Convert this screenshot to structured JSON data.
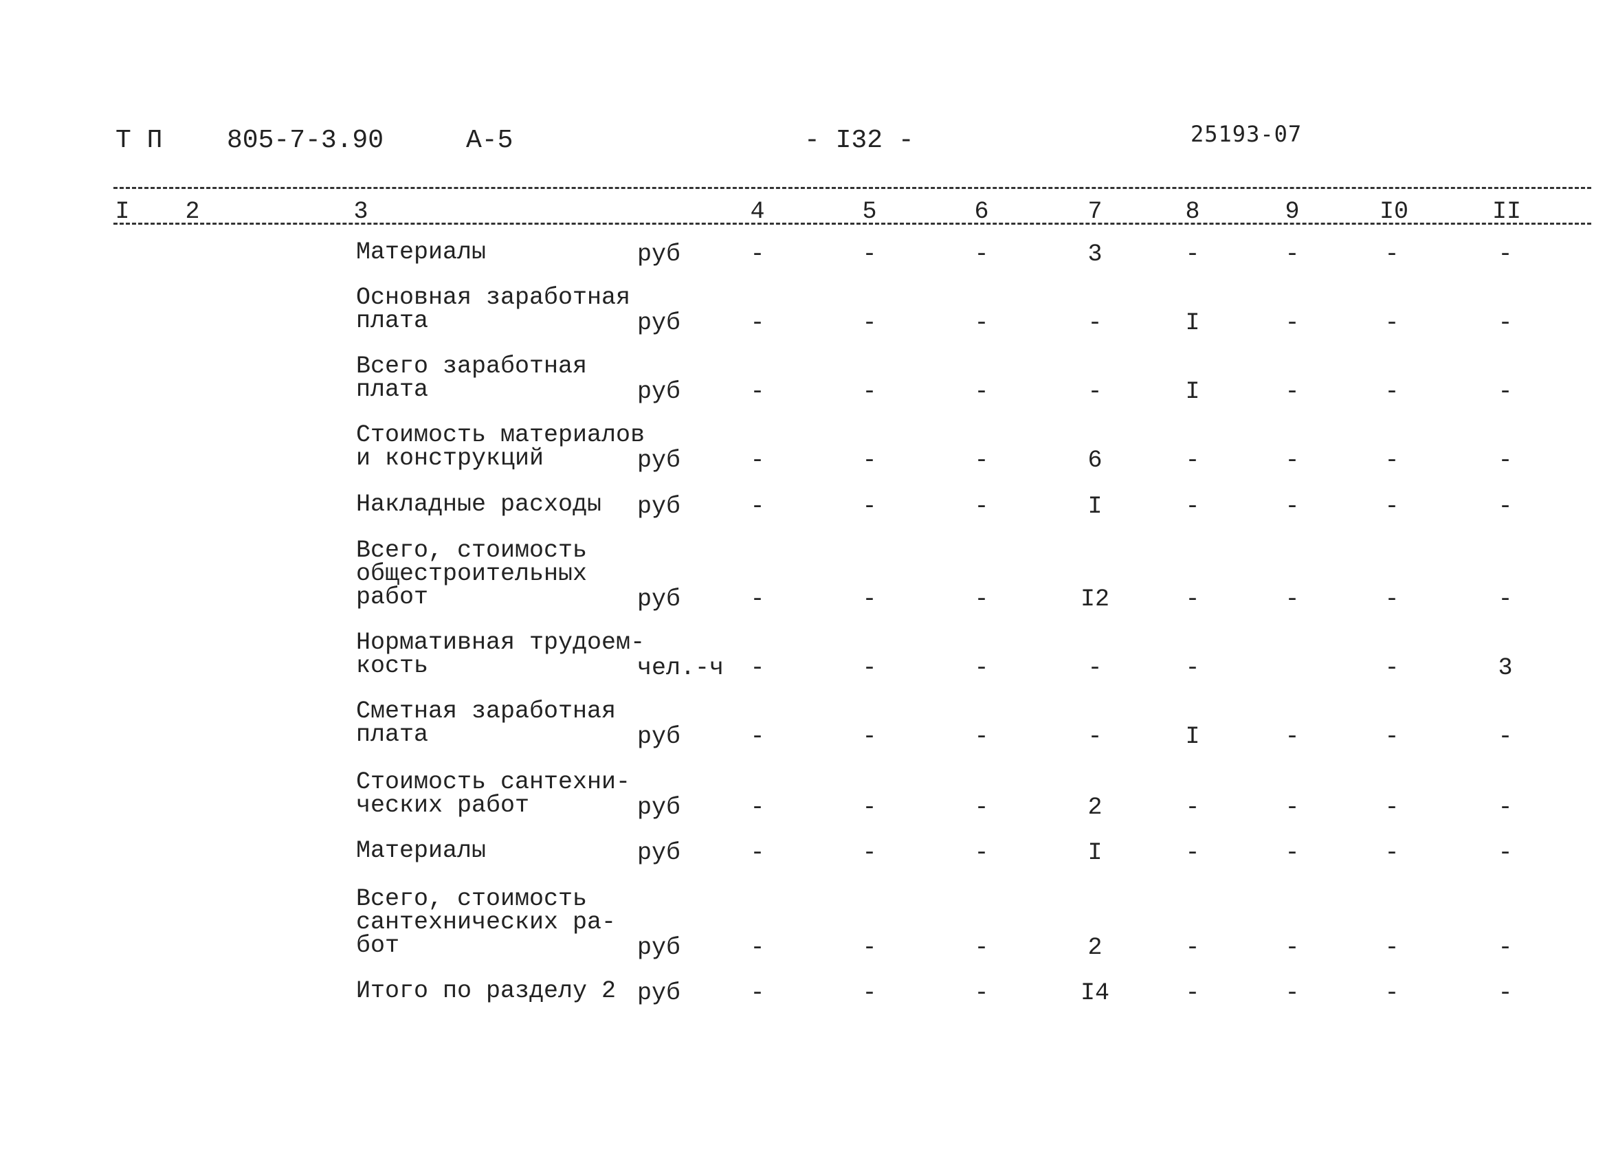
{
  "header": {
    "series": "Т П",
    "code": "805-7-3.90",
    "album": "А-5",
    "page": "- I32 -",
    "stamp": "25193-07"
  },
  "columns": [
    "I",
    "2",
    "3",
    "4",
    "5",
    "6",
    "7",
    "8",
    "9",
    "I0",
    "II"
  ],
  "rows": [
    {
      "label": [
        "Материалы"
      ],
      "unit": "руб",
      "values": [
        "-",
        "-",
        "-",
        "3",
        "-",
        "-",
        "-",
        "-"
      ]
    },
    {
      "label": [
        "Основная заработная",
        "плата"
      ],
      "unit": "руб",
      "values": [
        "-",
        "-",
        "-",
        "-",
        "I",
        "-",
        "-",
        "-"
      ]
    },
    {
      "label": [
        "Всего заработная",
        "плата"
      ],
      "unit": "руб",
      "values": [
        "-",
        "-",
        "-",
        "-",
        "I",
        "-",
        "-",
        "-"
      ]
    },
    {
      "label": [
        "Стоимость материалов",
        "и конструкций"
      ],
      "unit": "руб",
      "values": [
        "-",
        "-",
        "-",
        "6",
        "-",
        "-",
        "-",
        "-"
      ]
    },
    {
      "label": [
        "Накладные расходы"
      ],
      "unit": "руб",
      "values": [
        "-",
        "-",
        "-",
        "I",
        "-",
        "-",
        "-",
        "-"
      ]
    },
    {
      "label": [
        "Всего, стоимость",
        "общестроительных",
        "работ"
      ],
      "unit": "руб",
      "values": [
        "-",
        "-",
        "-",
        "I2",
        "-",
        "-",
        "-",
        "-"
      ]
    },
    {
      "label": [
        "Нормативная трудоем-",
        "кость"
      ],
      "unit": "чел.-ч",
      "values": [
        "-",
        "-",
        "-",
        "-",
        "-",
        "",
        "-",
        "3"
      ]
    },
    {
      "label": [
        "Сметная заработная",
        "плата"
      ],
      "unit": "руб",
      "values": [
        "-",
        "-",
        "-",
        "-",
        "I",
        "-",
        "-",
        "-"
      ]
    },
    {
      "label": [
        "Стоимость сантехни-",
        "ческих работ"
      ],
      "unit": "руб",
      "values": [
        "-",
        "-",
        "-",
        "2",
        "-",
        "-",
        "-",
        "-"
      ]
    },
    {
      "label": [
        "Материалы"
      ],
      "unit": "руб",
      "values": [
        "-",
        "-",
        "-",
        "I",
        "-",
        "-",
        "-",
        "-"
      ]
    },
    {
      "label": [
        "Всего, стоимость",
        "сантехнических ра-",
        "бот"
      ],
      "unit": "руб",
      "values": [
        "-",
        "-",
        "-",
        "2",
        "-",
        "-",
        "-",
        "-"
      ]
    },
    {
      "label": [
        "Итого по разделу 2"
      ],
      "unit": "руб",
      "values": [
        "-",
        "-",
        "-",
        "I4",
        "-",
        "-",
        "-",
        "-"
      ]
    }
  ]
}
